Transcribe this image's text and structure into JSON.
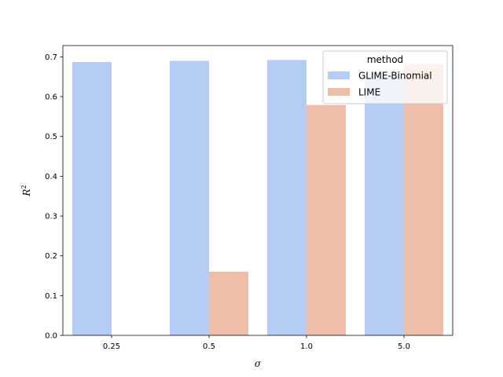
{
  "chart_data": {
    "type": "bar",
    "categories": [
      "0.25",
      "0.5",
      "1.0",
      "5.0"
    ],
    "series": [
      {
        "name": "GLIME-Binomial",
        "color": "#b4cbf4",
        "values": [
          0.687,
          0.69,
          0.692,
          0.65
        ]
      },
      {
        "name": "LIME",
        "color": "#edbea7",
        "values": [
          0,
          0.16,
          0.579,
          0.681
        ]
      }
    ],
    "xlabel": "σ",
    "ylabel_base": "R",
    "ylabel_sup": "2",
    "ylim": [
      0,
      0.7284
    ],
    "yticks": [
      "0.0",
      "0.1",
      "0.2",
      "0.3",
      "0.4",
      "0.5",
      "0.6",
      "0.7"
    ],
    "legend": {
      "title": "method",
      "position": "top-right"
    },
    "grid": false
  }
}
